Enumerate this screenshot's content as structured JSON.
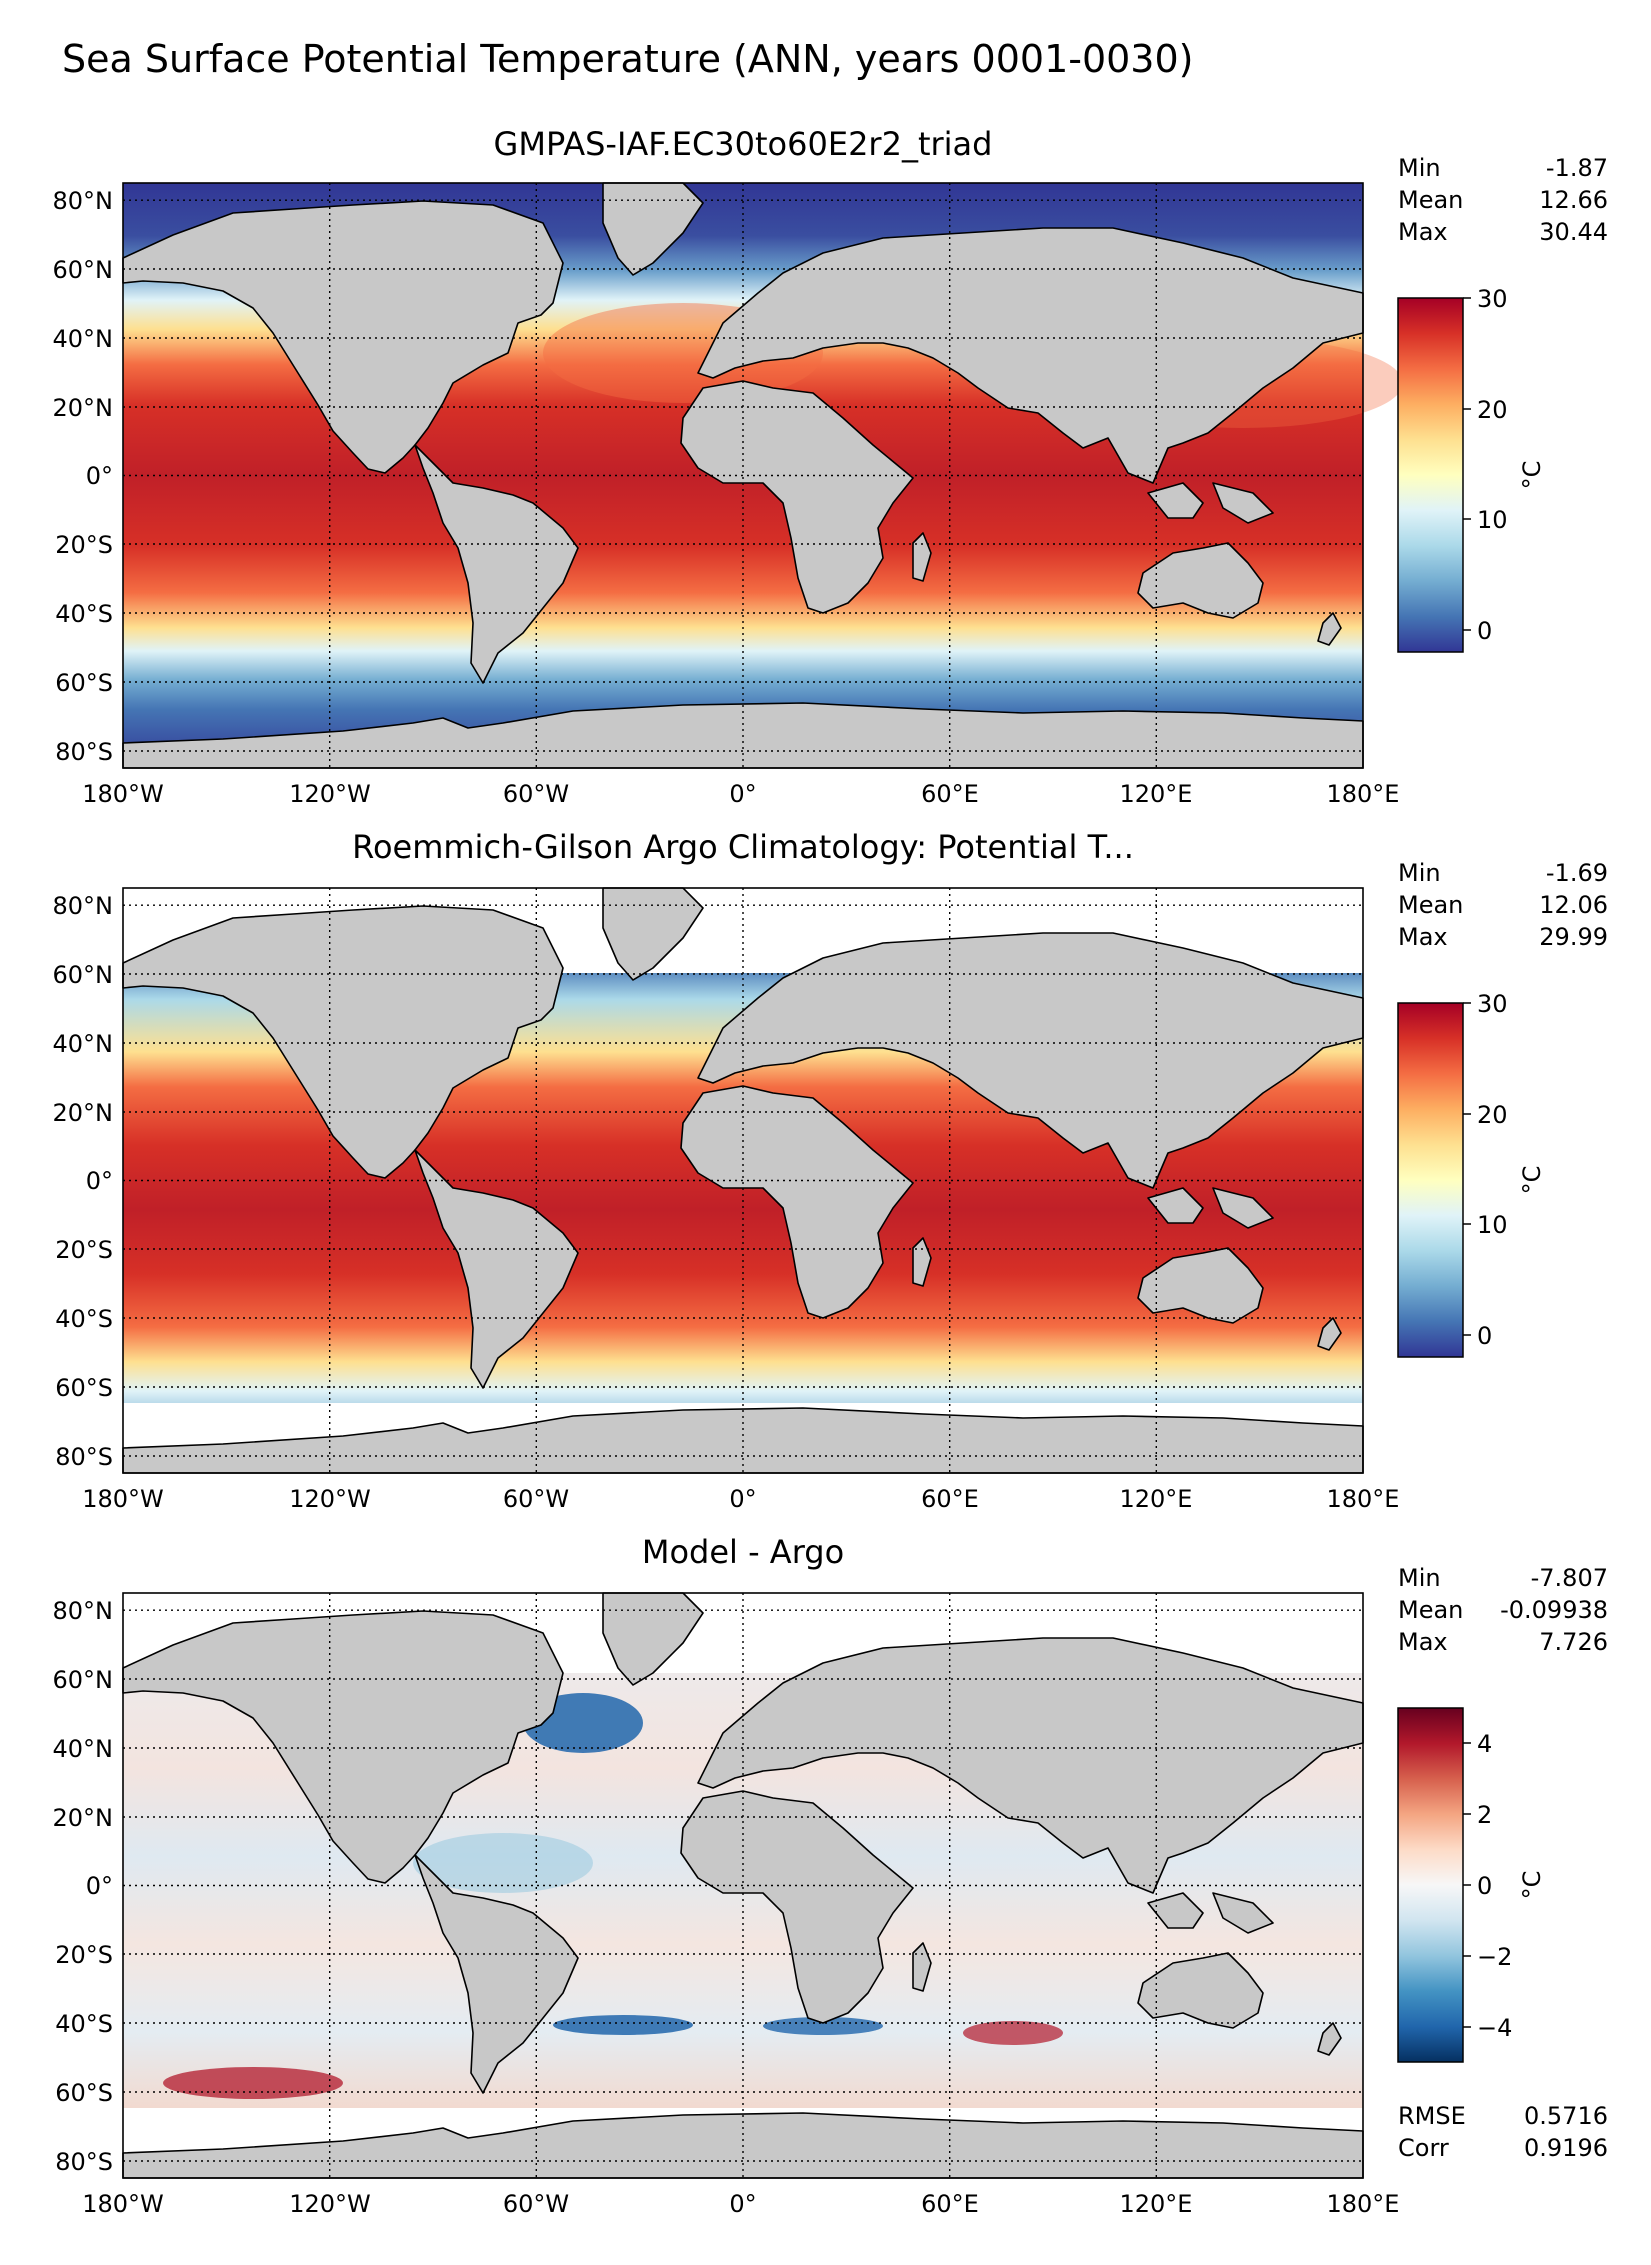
{
  "suptitle": "Sea Surface Potential Temperature (ANN, years 0001-0030)",
  "lon_ticks": [
    "180°W",
    "120°W",
    "60°W",
    "0°",
    "60°E",
    "120°E",
    "180°E"
  ],
  "lat_ticks": [
    "80°N",
    "60°N",
    "40°N",
    "20°N",
    "0°",
    "20°S",
    "40°S",
    "60°S",
    "80°S"
  ],
  "colors": {
    "land": "#c8c8c8",
    "temperature_colormap": [
      "#313695",
      "#4575b4",
      "#74add1",
      "#abd9e9",
      "#e0f3f8",
      "#ffffbf",
      "#fee090",
      "#fdae61",
      "#f46d43",
      "#d73027",
      "#a50026"
    ],
    "difference_colormap": [
      "#053061",
      "#2166ac",
      "#4393c3",
      "#92c5de",
      "#d1e5f0",
      "#f7f7f7",
      "#fddbc7",
      "#f4a582",
      "#d6604d",
      "#b2182b",
      "#67001f"
    ]
  },
  "panels": [
    {
      "title": "GMPAS-IAF.EC30to60E2r2_triad",
      "stats": [
        {
          "label": "Min",
          "value": "-1.87"
        },
        {
          "label": "Mean",
          "value": "12.66"
        },
        {
          "label": "Max",
          "value": "30.44"
        }
      ],
      "colorbar": {
        "label": "°C",
        "range": [
          -2,
          30
        ],
        "ticks": [
          "30",
          "20",
          "10",
          "0"
        ],
        "colormap": "temperature"
      }
    },
    {
      "title": "Roemmich-Gilson Argo Climatology: Potential T...",
      "stats": [
        {
          "label": "Min",
          "value": "-1.69"
        },
        {
          "label": "Mean",
          "value": "12.06"
        },
        {
          "label": "Max",
          "value": "29.99"
        }
      ],
      "colorbar": {
        "label": "°C",
        "range": [
          -2,
          30
        ],
        "ticks": [
          "30",
          "20",
          "10",
          "0"
        ],
        "colormap": "temperature"
      }
    },
    {
      "title": "Model - Argo",
      "stats": [
        {
          "label": "Min",
          "value": "-7.807"
        },
        {
          "label": "Mean",
          "value": "-0.09938"
        },
        {
          "label": "Max",
          "value": "7.726"
        }
      ],
      "extra_stats": [
        {
          "label": "RMSE",
          "value": "0.5716"
        },
        {
          "label": "Corr",
          "value": "0.9196"
        }
      ],
      "colorbar": {
        "label": "°C",
        "range": [
          -5,
          5
        ],
        "ticks": [
          "4",
          "2",
          "0",
          "−2",
          "−4"
        ],
        "colormap": "difference"
      }
    }
  ]
}
